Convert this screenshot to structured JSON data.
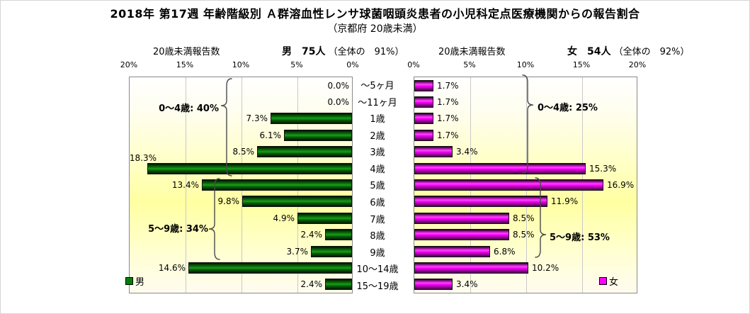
{
  "header": {
    "title": "2018年 第17週 年齢階級別 Ａ群溶血性レンサ球菌咽頭炎患者の小児科定点医療機関からの報告割合",
    "subtitle": "（京都府 20歳未満）",
    "male_axis_title": "20歳未満報告数",
    "female_axis_title": "20歳未満報告数",
    "male_count": "男　75人",
    "male_share": "（全体の　91%）",
    "female_count": "女　54人",
    "female_share": "（全体の　92%）"
  },
  "chart_data": {
    "type": "bar",
    "orientation": "horizontal-pyramid",
    "title": "2018年 第17週 年齢階級別 Ａ群溶血性レンサ球菌咽頭炎患者の小児科定点医療機関からの報告割合（京都府 20歳未満）",
    "categories": [
      "～5ヶ月",
      "～11ヶ月",
      "1歳",
      "2歳",
      "3歳",
      "4歳",
      "5歳",
      "6歳",
      "7歳",
      "8歳",
      "9歳",
      "10～14歳",
      "15～19歳"
    ],
    "series": [
      {
        "name": "男",
        "color": "#008000",
        "values": [
          0.0,
          0.0,
          7.3,
          6.1,
          8.5,
          18.3,
          13.4,
          9.8,
          4.9,
          2.4,
          3.7,
          14.6,
          2.4
        ]
      },
      {
        "name": "女",
        "color": "#ff00ff",
        "values": [
          1.7,
          1.7,
          1.7,
          1.7,
          3.4,
          15.3,
          16.9,
          11.9,
          8.5,
          8.5,
          6.8,
          10.2,
          3.4
        ]
      }
    ],
    "xlim": [
      0,
      20
    ],
    "male_axis_ticks": [
      "20%",
      "15%",
      "10%",
      "5%",
      "0%"
    ],
    "female_axis_ticks": [
      "0%",
      "5%",
      "10%",
      "15%",
      "20%"
    ],
    "grid": true,
    "legend_position": "bottom-inside",
    "plot_bg_colors": [
      "#ffffff",
      "#ffffa2"
    ],
    "label_format": "0.0%"
  },
  "annotations": {
    "male": [
      {
        "label": "0～4歳: 40%"
      },
      {
        "label": "5～9歳: 34%"
      }
    ],
    "female": [
      {
        "label": "0～4歳: 25%"
      },
      {
        "label": "5～9歳: 53%"
      }
    ]
  }
}
